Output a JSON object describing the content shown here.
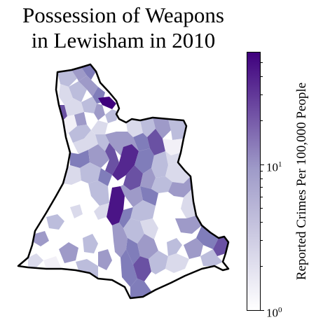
{
  "title_line1": "Possession of Weapons",
  "title_line2": "in Lewisham in 2010",
  "colorbar": {
    "label": "Reported Crimes Per 100,000 People",
    "tick_bottom_base": "10",
    "tick_bottom_exp": "0",
    "tick_mid_base": "10",
    "tick_mid_exp": "1",
    "scale": "log",
    "colors": {
      "low": "#ffffff",
      "mid": "#9e9ac8",
      "high": "#3f007d"
    }
  },
  "map_layers": {
    "boundary": "Lewisham borough outline",
    "fill": "choropleth of small areas, Purples colormap"
  }
}
